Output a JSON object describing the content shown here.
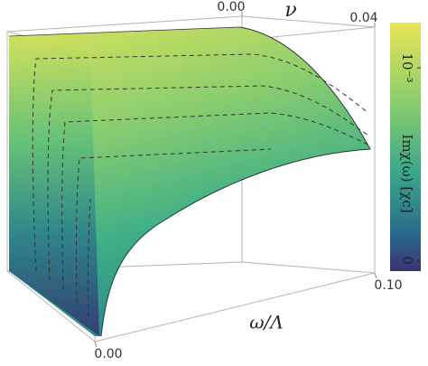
{
  "chart_data": {
    "type": "surface",
    "x_label": "ω/Λ",
    "y_label": "ν",
    "colorbar_label": "Imχ(ω)   [χc]",
    "xlim": [
      0,
      0.1
    ],
    "xticks": [
      {
        "value": 0,
        "label": "0.00"
      },
      {
        "value": 0.1,
        "label": "0.10"
      }
    ],
    "ylim": [
      0,
      0.04
    ],
    "yticks": [
      {
        "value": 0,
        "label": "0.00"
      },
      {
        "value": 0.04,
        "label": "0.04"
      }
    ],
    "clim": [
      0,
      0.001
    ],
    "colorbar_ticks": [
      {
        "value": 0.001,
        "label": "10⁻³"
      },
      {
        "value": 0,
        "label": "0"
      }
    ]
  }
}
